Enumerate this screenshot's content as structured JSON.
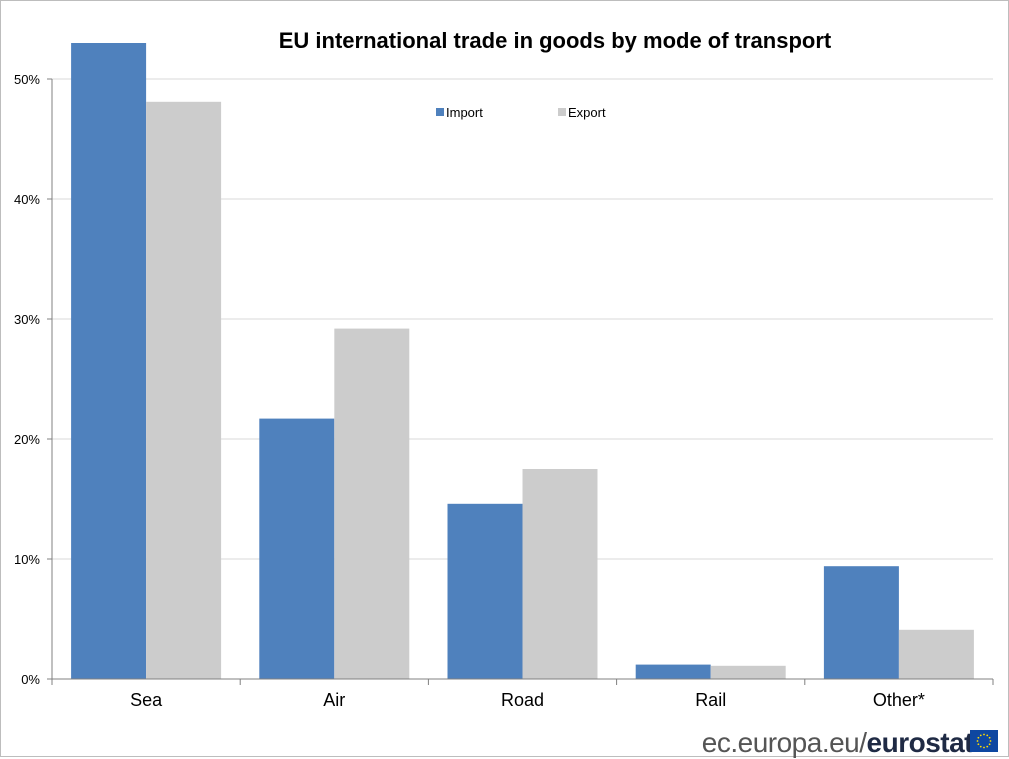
{
  "colors": {
    "import": "#4f81bd",
    "export": "#cccccc",
    "grid": "#d9d9d9",
    "axis": "#808080",
    "flag": "#0e47a1",
    "flag_star": "#ffdd00"
  },
  "chart_data": {
    "type": "bar",
    "title": "EU international trade in goods by mode of transport",
    "xlabel": "",
    "ylabel": "",
    "categories": [
      "Sea",
      "Air",
      "Road",
      "Rail",
      "Other*"
    ],
    "series": [
      {
        "name": "Import",
        "values": [
          53.0,
          21.7,
          14.6,
          1.2,
          9.4
        ]
      },
      {
        "name": "Export",
        "values": [
          48.1,
          29.2,
          17.5,
          1.1,
          4.1
        ]
      }
    ],
    "ylim": [
      0,
      50
    ],
    "yticks": [
      "0%",
      "10%",
      "20%",
      "30%",
      "40%",
      "50%"
    ],
    "grid": true,
    "legend_position": "top-center"
  },
  "footer": {
    "site": "ec.europa.eu/",
    "brand": "eurostat"
  },
  "icons": {
    "flag": "eu-flag-icon"
  }
}
